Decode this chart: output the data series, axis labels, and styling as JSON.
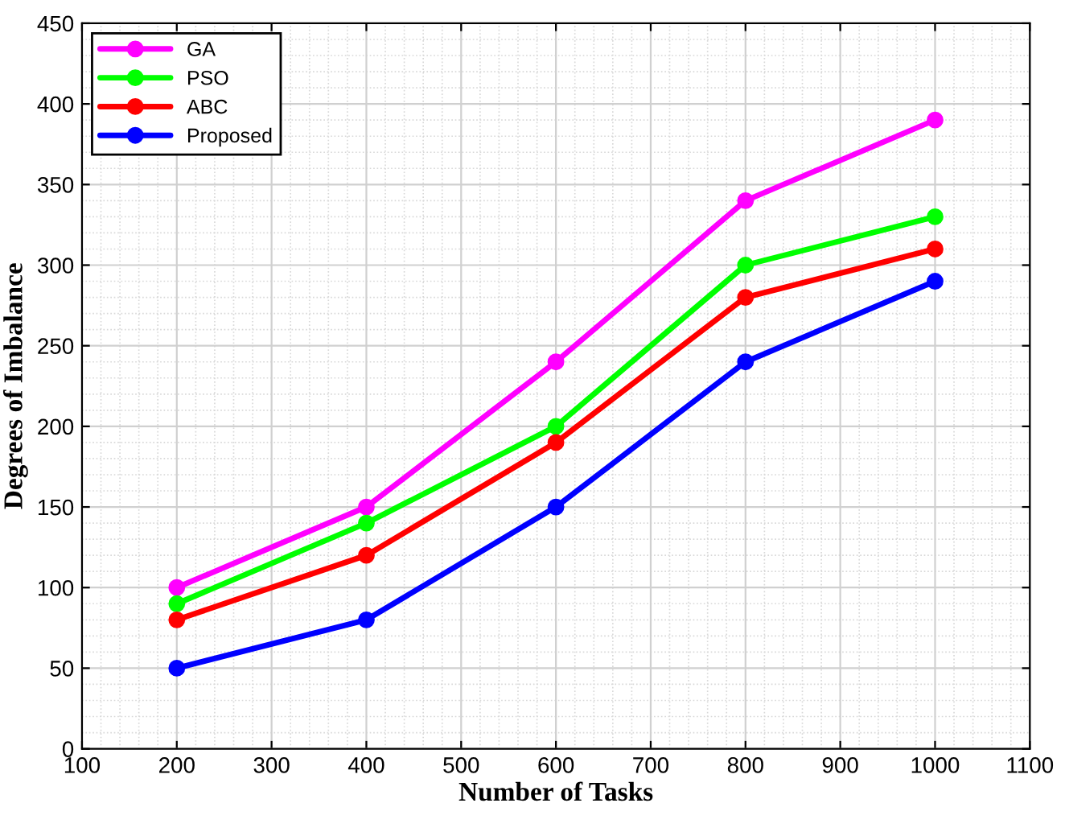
{
  "chart_data": {
    "type": "line",
    "xlabel": "Number of Tasks",
    "ylabel": "Degrees of Imbalance",
    "x": [
      200,
      400,
      600,
      800,
      1000
    ],
    "series": [
      {
        "name": "GA",
        "color": "#ff00ff",
        "values": [
          100,
          150,
          240,
          340,
          390
        ]
      },
      {
        "name": "PSO",
        "color": "#00ff00",
        "values": [
          90,
          140,
          200,
          300,
          330
        ]
      },
      {
        "name": "ABC",
        "color": "#ff0000",
        "values": [
          80,
          120,
          190,
          280,
          310
        ]
      },
      {
        "name": "Proposed",
        "color": "#0000ff",
        "values": [
          50,
          80,
          150,
          240,
          290
        ]
      }
    ],
    "xlim": [
      100,
      1100
    ],
    "xticks": [
      100,
      200,
      300,
      400,
      500,
      600,
      700,
      800,
      900,
      1000,
      1100
    ],
    "ylim": [
      0,
      450
    ],
    "yticks": [
      0,
      50,
      100,
      150,
      200,
      250,
      300,
      350,
      400,
      450
    ],
    "grid": true,
    "legend": "top left",
    "marker": "circle",
    "line_style": "solid"
  }
}
